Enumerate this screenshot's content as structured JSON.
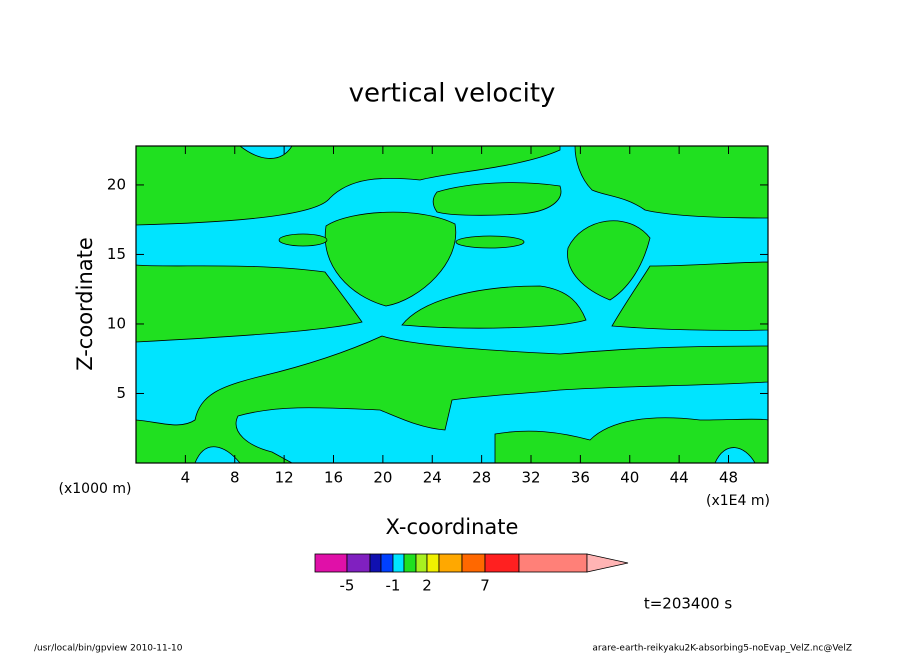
{
  "chart_data": {
    "type": "contour",
    "title": "vertical velocity",
    "xlabel": "X-coordinate",
    "ylabel": "Z-coordinate",
    "x_unit_left": "(x1000 m)",
    "x_unit_right": "(x1E4 m)",
    "xlim": [
      0,
      51.2
    ],
    "ylim": [
      0,
      22.8
    ],
    "xticks": [
      4,
      8,
      12,
      16,
      20,
      24,
      28,
      32,
      36,
      40,
      44,
      48
    ],
    "yticks": [
      5,
      10,
      15,
      20
    ],
    "colorbar": {
      "levels": [
        -7,
        -5,
        -3,
        -2,
        -1,
        0,
        1,
        2,
        3,
        5,
        7,
        10,
        20
      ],
      "colors": [
        "#e010a8",
        "#8020c0",
        "#1010b0",
        "#0040ff",
        "#00e4ff",
        "#20e020",
        "#a8f020",
        "#f0f000",
        "#ffa800",
        "#ff6800",
        "#ff2020",
        "#ff8078",
        "#ffb4b4"
      ],
      "ticks": [
        -5,
        -1,
        2,
        7
      ]
    },
    "time_label": "t=203400 s",
    "footer_left": "/usr/local/bin/gpview  2010-11-10",
    "footer_right": "arare-earth-reikyaku2K-absorbing5-noEvap_VelZ.nc@VelZ"
  }
}
